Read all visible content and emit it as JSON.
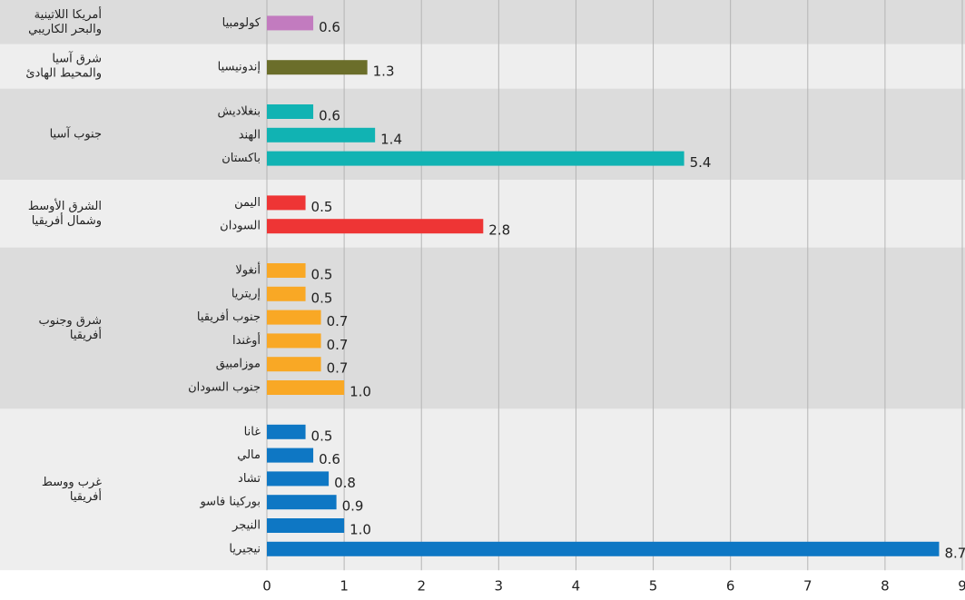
{
  "chart_data": {
    "type": "bar",
    "orientation": "horizontal",
    "groups": [
      {
        "name": [
          "أمريكا اللاتينية",
          "والبحر الكاريبي"
        ],
        "color": "#c27bbf",
        "categories": [
          "كولومبيا"
        ],
        "values": [
          0.6
        ],
        "value_labels": [
          "0.6"
        ]
      },
      {
        "name": [
          "شرق آسيا",
          "والمحيط الهادئ"
        ],
        "color": "#6b6e2a",
        "categories": [
          "إندونيسيا"
        ],
        "values": [
          1.3
        ],
        "value_labels": [
          "1.3"
        ]
      },
      {
        "name": [
          "جنوب آسيا"
        ],
        "color": "#11b3b3",
        "categories": [
          "بنغلاديش",
          "الهند",
          "باكستان"
        ],
        "values": [
          0.6,
          1.4,
          5.4
        ],
        "value_labels": [
          "0.6",
          "1.4",
          "5.4"
        ]
      },
      {
        "name": [
          "الشرق الأوسط",
          "وشمال أفريقيا"
        ],
        "color": "#ee3535",
        "categories": [
          "اليمن",
          "السودان"
        ],
        "values": [
          0.5,
          2.8
        ],
        "value_labels": [
          "0.5",
          "2.8"
        ]
      },
      {
        "name": [
          "شرق وجنوب",
          "أفريقيا"
        ],
        "color": "#f9a825",
        "categories": [
          "أنغولا",
          "إريتريا",
          "جنوب أفريقيا",
          "أوغندا",
          "موزامبيق",
          "جنوب السودان"
        ],
        "values": [
          0.5,
          0.5,
          0.7,
          0.7,
          0.7,
          1.0
        ],
        "value_labels": [
          "0.5",
          "0.5",
          "0.7",
          "0.7",
          "0.7",
          "1.0"
        ]
      },
      {
        "name": [
          "غرب ووسط",
          "أفريقيا"
        ],
        "color": "#0e77c4",
        "categories": [
          "غانا",
          "مالي",
          "تشاد",
          "بوركينا فاسو",
          "النيجر",
          "نيجيريا"
        ],
        "values": [
          0.5,
          0.6,
          0.8,
          0.9,
          1.0,
          8.7
        ],
        "value_labels": [
          "0.5",
          "0.6",
          "0.8",
          "0.9",
          "1.0",
          "8.7"
        ]
      }
    ],
    "xlim": [
      0,
      9
    ],
    "xticks": [
      0,
      1,
      2,
      3,
      4,
      5,
      6,
      7,
      8,
      9
    ],
    "grid": true
  }
}
